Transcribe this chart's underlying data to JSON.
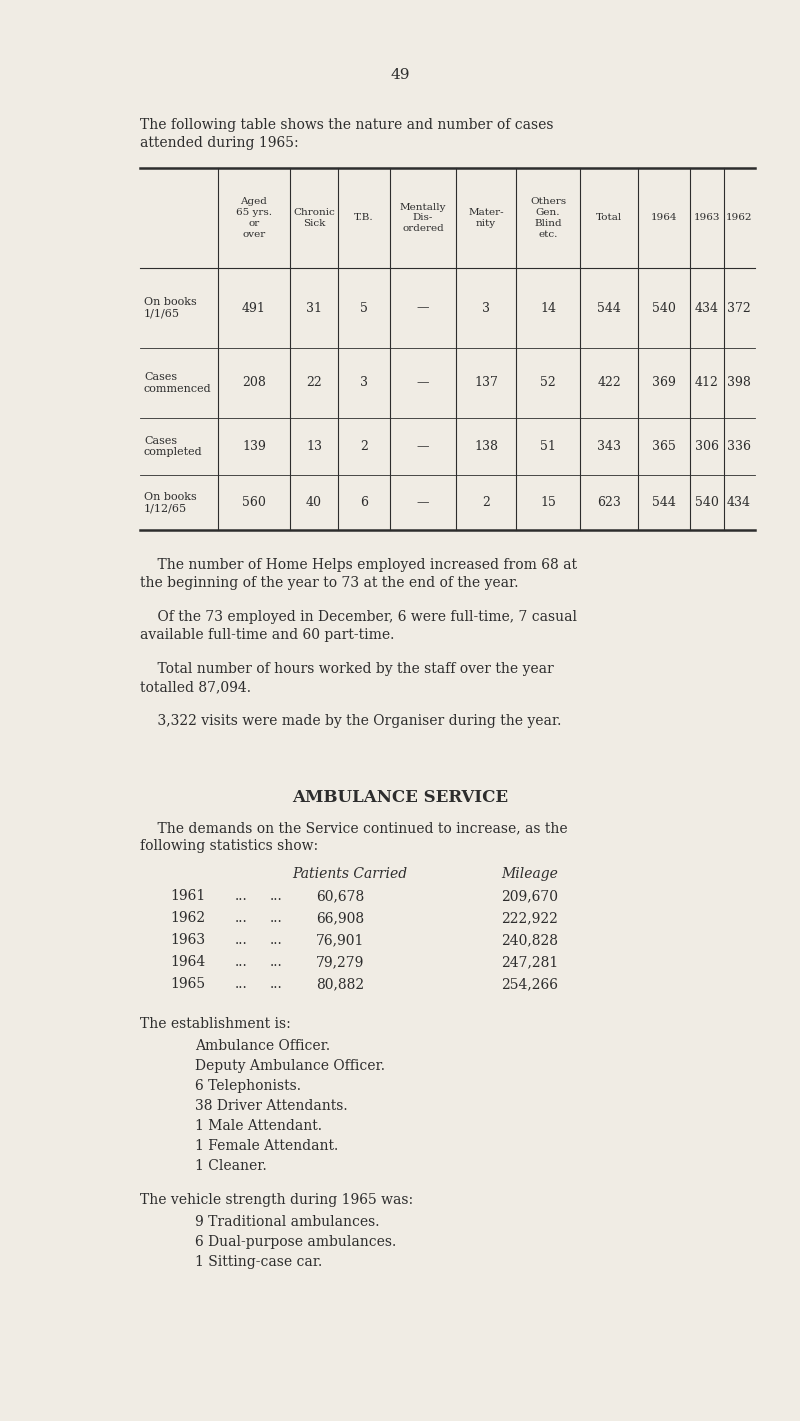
{
  "page_number": "49",
  "bg_color": "#f0ece4",
  "text_color": "#2d2d2d",
  "intro_text_line1": "The following table shows the nature and number of cases",
  "intro_text_line2": "attended during 1965:",
  "table_col_headers": [
    "Aged\n65 yrs.\nor\nover",
    "Chronic\nSick",
    "T.B.",
    "Mentally\nDis-\nordered",
    "Mater-\nnity",
    "Others\nGen.\nBlind\netc.",
    "Total",
    "1964",
    "1963",
    "1962"
  ],
  "table_row_labels": [
    "On books\n1/1/65",
    "Cases\ncommenced",
    "Cases\ncompleted",
    "On books\n1/12/65"
  ],
  "table_data": [
    [
      "491",
      "31",
      "5",
      "—",
      "3",
      "14",
      "544",
      "540",
      "434",
      "372"
    ],
    [
      "208",
      "22",
      "3",
      "—",
      "137",
      "52",
      "422",
      "369",
      "412",
      "398"
    ],
    [
      "139",
      "13",
      "2",
      "—",
      "138",
      "51",
      "343",
      "365",
      "306",
      "336"
    ],
    [
      "560",
      "40",
      "6",
      "—",
      "2",
      "15",
      "623",
      "544",
      "540",
      "434"
    ]
  ],
  "para1_indent": "    The number of Home Helps employed increased from 68 at",
  "para1_cont": "the beginning of the year to 73 at the end of the year.",
  "para2_indent": "    Of the 73 employed in December, 6 were full-time, 7 casual",
  "para2_cont": "available full-time and 60 part-time.",
  "para3_indent": "    Total number of hours worked by the staff over the year",
  "para3_cont": "totalled 87,094.",
  "para4": "    3,322 visits were made by the Organiser during the year.",
  "ambulance_title": "AMBULANCE SERVICE",
  "ambulance_intro_line1": "    The demands on the Service continued to increase, as the",
  "ambulance_intro_line2": "following statistics show:",
  "ambulance_col1_header": "Patients Carried",
  "ambulance_col2_header": "Mileage",
  "ambulance_years": [
    "1961",
    "1962",
    "1963",
    "1964",
    "1965"
  ],
  "ambulance_patients": [
    "60,678",
    "66,908",
    "76,901",
    "79,279",
    "80,882"
  ],
  "ambulance_mileage": [
    "209,670",
    "222,922",
    "240,828",
    "247,281",
    "254,266"
  ],
  "establishment_intro": "The establishment is:",
  "establishment_list": [
    "Ambulance Officer.",
    "Deputy Ambulance Officer.",
    "6 Telephonists.",
    "38 Driver Attendants.",
    "1 Male Attendant.",
    "1 Female Attendant.",
    "1 Cleaner."
  ],
  "vehicle_intro": "The vehicle strength during 1965 was:",
  "vehicle_list": [
    "9 Traditional ambulances.",
    "6 Dual-purpose ambulances.",
    "1 Sitting-case car."
  ]
}
